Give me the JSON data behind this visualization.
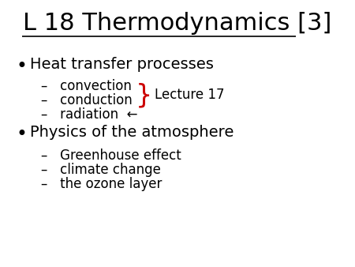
{
  "title_part1": "L 18 Thermodynamics ",
  "title_part2": "[3]",
  "background_color": "#ffffff",
  "title_fontsize": 22,
  "bullet1": "Heat transfer processes",
  "sub1a": "convection",
  "sub1b": "conduction",
  "sub1c": "radiation",
  "annotation": "Lecture 17",
  "bullet2": "Physics of the atmosphere",
  "sub2a": "Greenhouse effect",
  "sub2b": "climate change",
  "sub2c": "the ozone layer",
  "text_color": "#000000",
  "red_color": "#cc0000",
  "bullet_fontsize": 14,
  "sub_fontsize": 12,
  "annotation_fontsize": 12
}
